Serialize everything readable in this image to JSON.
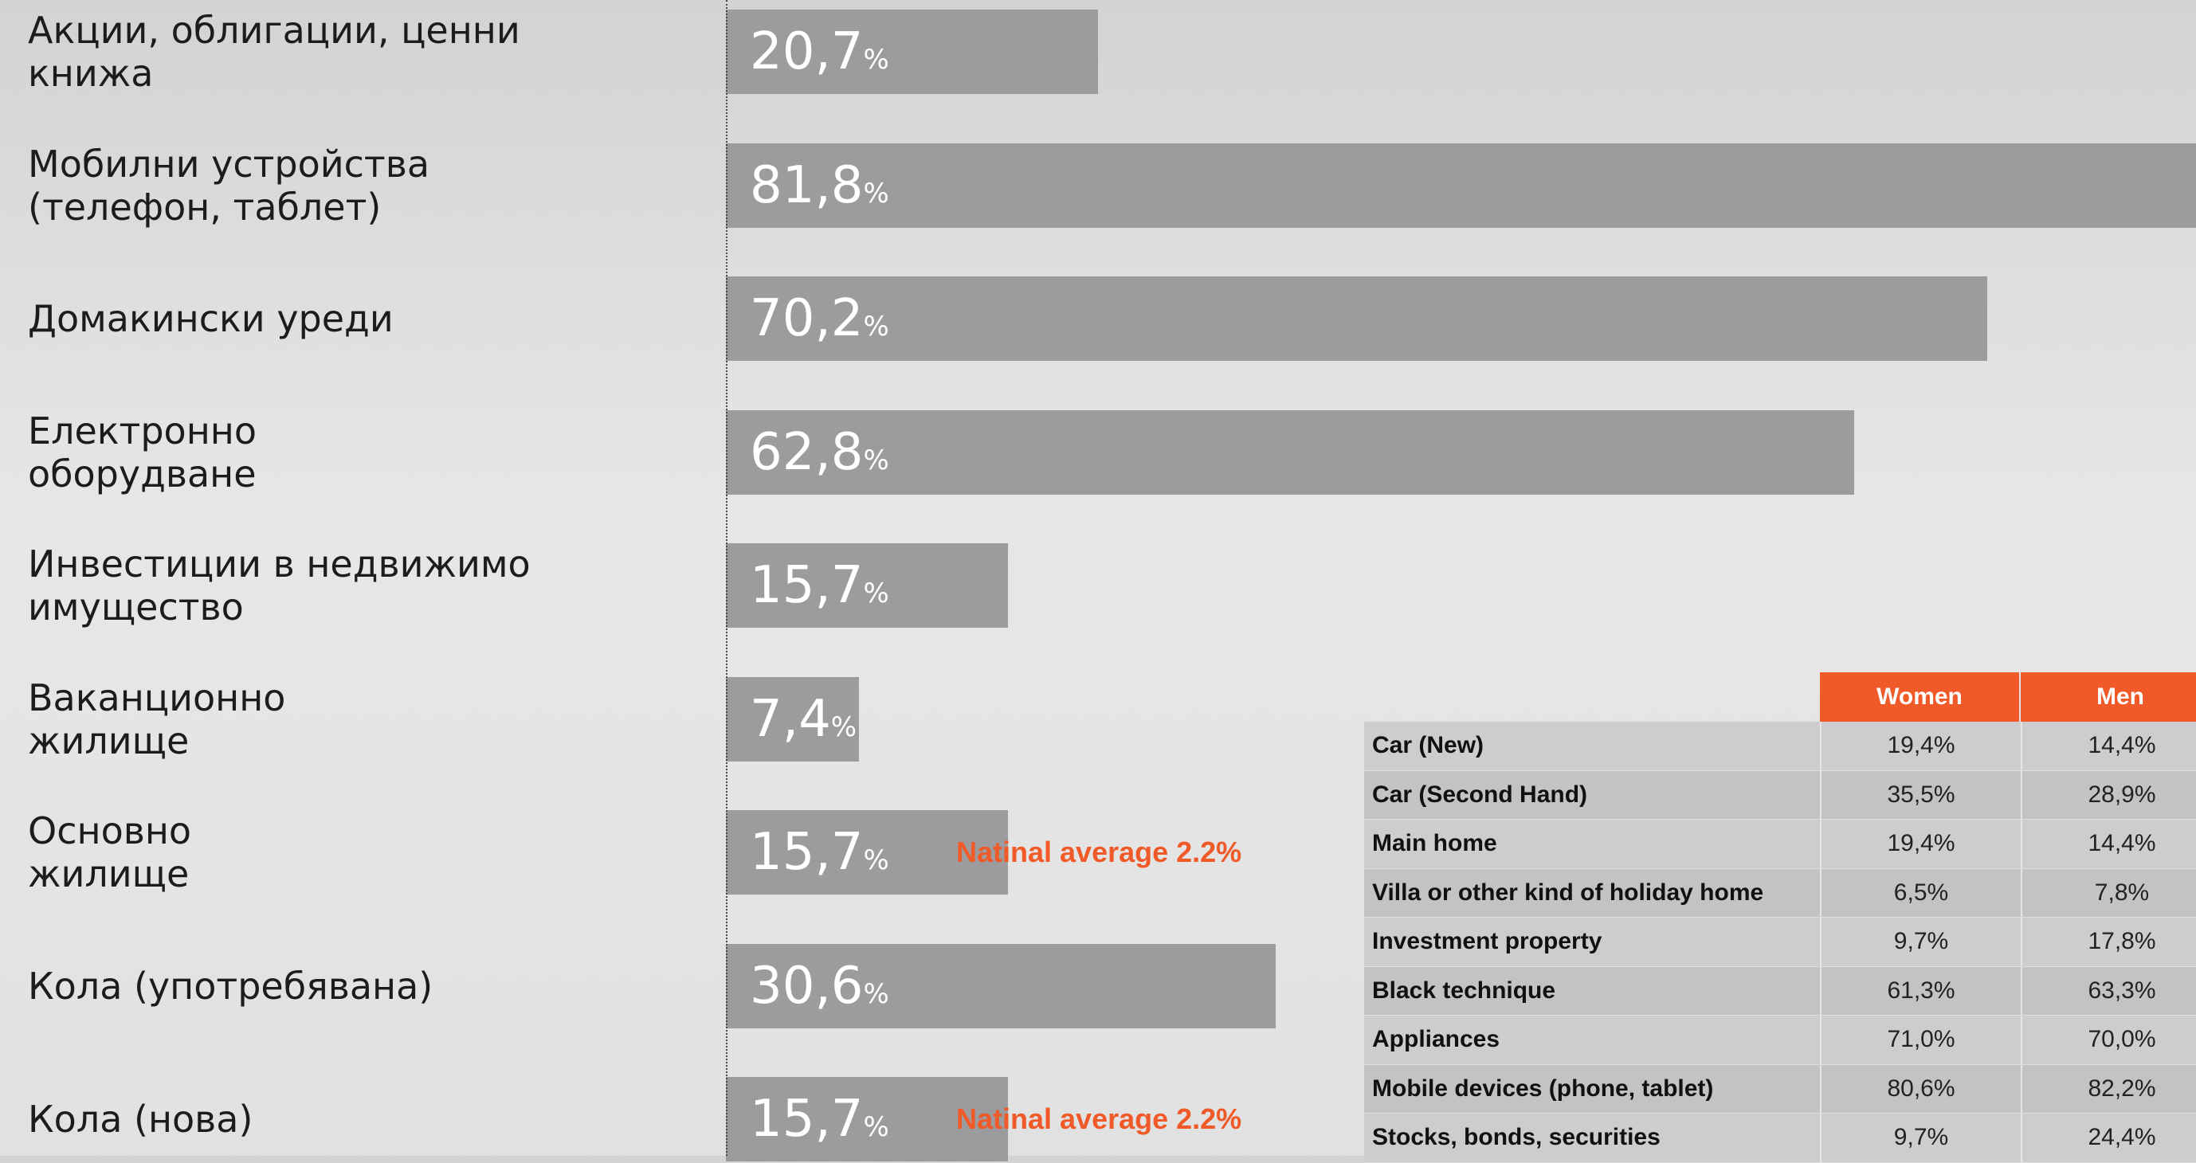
{
  "chart_data": {
    "type": "bar",
    "orientation": "horizontal",
    "categories": [
      "Акции, облигации, ценни\nкнижа",
      "Мобилни устройства\n(телефон, таблет)",
      "Домакински уреди",
      "Електронно\nоборудване",
      "Инвестиции в недвижимо\nимущество",
      "Ваканционно\nжилище",
      "Основно\nжилище",
      "Кола (употребявана)",
      "Кола (нова)"
    ],
    "values": [
      20.7,
      81.8,
      70.2,
      62.8,
      15.7,
      7.4,
      15.7,
      30.6,
      15.7
    ],
    "value_labels": [
      "20,7",
      "81,8",
      "70,2",
      "62,8",
      "15,7",
      "7,4",
      "15,7",
      "30,6",
      "15,7"
    ],
    "value_suffix": "%",
    "annotations": [
      {
        "category_index": 6,
        "text": "Natinal average 2.2%"
      },
      {
        "category_index": 8,
        "text": "Natinal average 2.2%"
      }
    ],
    "colors": {
      "bar": "#9c9c9e",
      "annotation": "#f05a28"
    },
    "title": "",
    "xlabel": "",
    "ylabel": "",
    "grid": false,
    "legend": "none"
  },
  "table": {
    "columns": [
      "Women",
      "Men"
    ],
    "rows": [
      {
        "name": "Car (New)",
        "women": "19,4%",
        "men": "14,4%"
      },
      {
        "name": "Car (Second Hand)",
        "women": "35,5%",
        "men": "28,9%"
      },
      {
        "name": "Main home",
        "women": "19,4%",
        "men": "14,4%"
      },
      {
        "name": "Villa or other kind of holiday home",
        "women": "6,5%",
        "men": "7,8%"
      },
      {
        "name": "Investment property",
        "women": "9,7%",
        "men": "17,8%"
      },
      {
        "name": "Black technique",
        "women": "61,3%",
        "men": "63,3%"
      },
      {
        "name": "Appliances",
        "women": "71,0%",
        "men": "70,0%"
      },
      {
        "name": "Mobile devices (phone, tablet)",
        "women": "80,6%",
        "men": "82,2%"
      },
      {
        "name": "Stocks, bonds, securities",
        "women": "9,7%",
        "men": "24,4%"
      }
    ],
    "header_color": "#f05a28"
  }
}
